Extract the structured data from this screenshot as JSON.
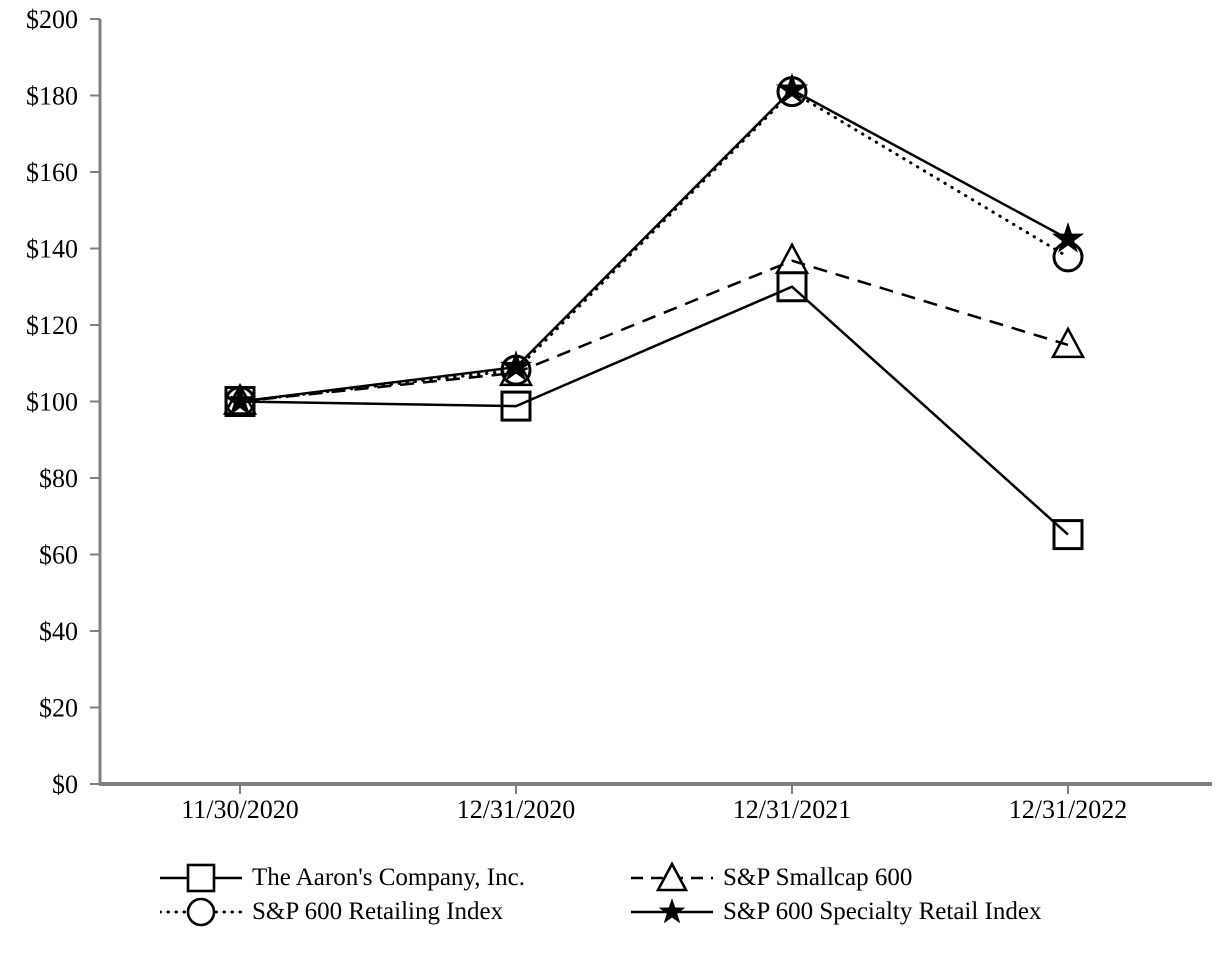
{
  "chart_data": {
    "type": "line",
    "title": "",
    "xlabel": "",
    "ylabel": "",
    "x_labels": [
      "11/30/2020",
      "12/31/2020",
      "12/31/2021",
      "12/31/2022"
    ],
    "y_axis": {
      "min": 0,
      "max": 200,
      "step": 20,
      "prefix": "$"
    },
    "ylim": [
      0,
      200
    ],
    "grid": false,
    "legend_position": "bottom",
    "series": [
      {
        "name": "The Aaron's Company, Inc.",
        "marker": "square",
        "line_style": "solid",
        "values": [
          100,
          98.8,
          130.0,
          65.2
        ]
      },
      {
        "name": "S&P Smallcap 600",
        "marker": "triangle",
        "line_style": "dashed",
        "values": [
          100,
          107.5,
          136.8,
          114.8
        ]
      },
      {
        "name": "S&P 600 Retailing Index",
        "marker": "circle",
        "line_style": "dotted",
        "values": [
          100,
          108.2,
          181.0,
          137.8
        ]
      },
      {
        "name": "S&P 600 Specialty Retail Index",
        "marker": "star",
        "line_style": "solid",
        "values": [
          100,
          109.0,
          181.5,
          142.5
        ]
      }
    ],
    "colors": {
      "line": "#000000",
      "axis": "#808080",
      "text": "#000000",
      "background": "#ffffff"
    }
  }
}
